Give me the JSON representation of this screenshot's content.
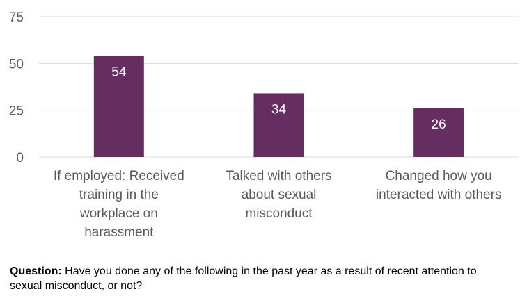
{
  "chart_data": {
    "type": "bar",
    "categories": [
      [
        "If employed: Received",
        "training in the",
        "workplace on",
        "harassment"
      ],
      [
        "Talked with others",
        "about sexual",
        "misconduct"
      ],
      [
        "Changed how you",
        "interacted with others"
      ]
    ],
    "values": [
      54,
      34,
      26
    ],
    "data_labels": [
      "54",
      "34",
      "26"
    ],
    "yticks": [
      "0",
      "25",
      "50",
      "75"
    ],
    "ylim": [
      0,
      75
    ],
    "grid": true,
    "legend": "none",
    "bar_color": "#662d61",
    "data_label_color": "#ffffff",
    "gridline_color": "#d9d9d9",
    "tick_label_color": "#595959"
  },
  "footnote": {
    "label": "Question:",
    "text": " Have you done any of the following in the past year as a result of recent attention to sexual misconduct, or not?"
  }
}
